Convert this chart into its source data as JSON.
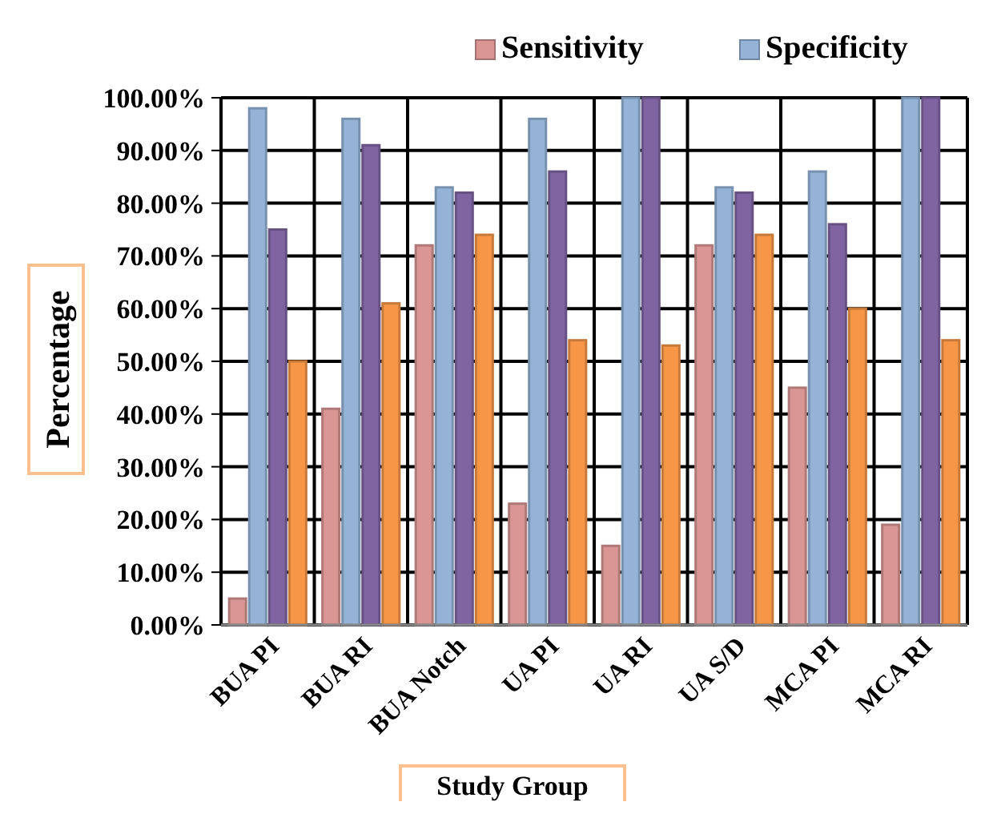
{
  "chart_data": {
    "type": "bar",
    "xlabel": "Study Group",
    "ylabel": "Percentage",
    "categories": [
      "BUA PI",
      "BUA RI",
      "BUA Notch",
      "UA PI",
      "UA RI",
      "UA S/D",
      "MCA PI",
      "MCA RI"
    ],
    "series": [
      {
        "name": "Sensitivity",
        "color": "#d99694",
        "values": [
          5,
          41,
          72,
          23,
          15,
          72,
          45,
          19
        ]
      },
      {
        "name": "Specificity",
        "color": "#95b3d7",
        "values": [
          98,
          96,
          83,
          96,
          100,
          83,
          86,
          100
        ]
      },
      {
        "color": "#8064a2",
        "values": [
          75,
          91,
          82,
          86,
          100,
          82,
          76,
          100
        ]
      },
      {
        "color": "#f79646",
        "values": [
          50,
          61,
          74,
          54,
          53,
          74,
          60,
          54
        ]
      }
    ],
    "ylim": [
      0,
      100
    ],
    "yticks": [
      {
        "value": 0,
        "label": "0.00%"
      },
      {
        "value": 10,
        "label": "10.00%"
      },
      {
        "value": 20,
        "label": "20.00%"
      },
      {
        "value": 30,
        "label": "30.00%"
      },
      {
        "value": 40,
        "label": "40.00%"
      },
      {
        "value": 50,
        "label": "50.00%"
      },
      {
        "value": 60,
        "label": "60.00%"
      },
      {
        "value": 70,
        "label": "70.00%"
      },
      {
        "value": 80,
        "label": "80.00%"
      },
      {
        "value": 90,
        "label": "90.00%"
      },
      {
        "value": 100,
        "label": "100.00%"
      }
    ],
    "grid": true,
    "legend": "top right"
  }
}
